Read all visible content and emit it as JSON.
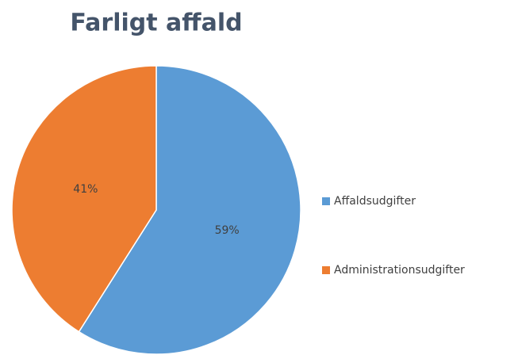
{
  "chart_data": {
    "type": "pie",
    "title": "Farligt affald",
    "categories": [
      "Affaldsudgifter",
      "Administrationsudgifter"
    ],
    "values": [
      59,
      41
    ],
    "value_labels": [
      "59%",
      "41%"
    ],
    "colors": [
      "#5b9bd5",
      "#ed7d31"
    ],
    "legend": "right"
  }
}
